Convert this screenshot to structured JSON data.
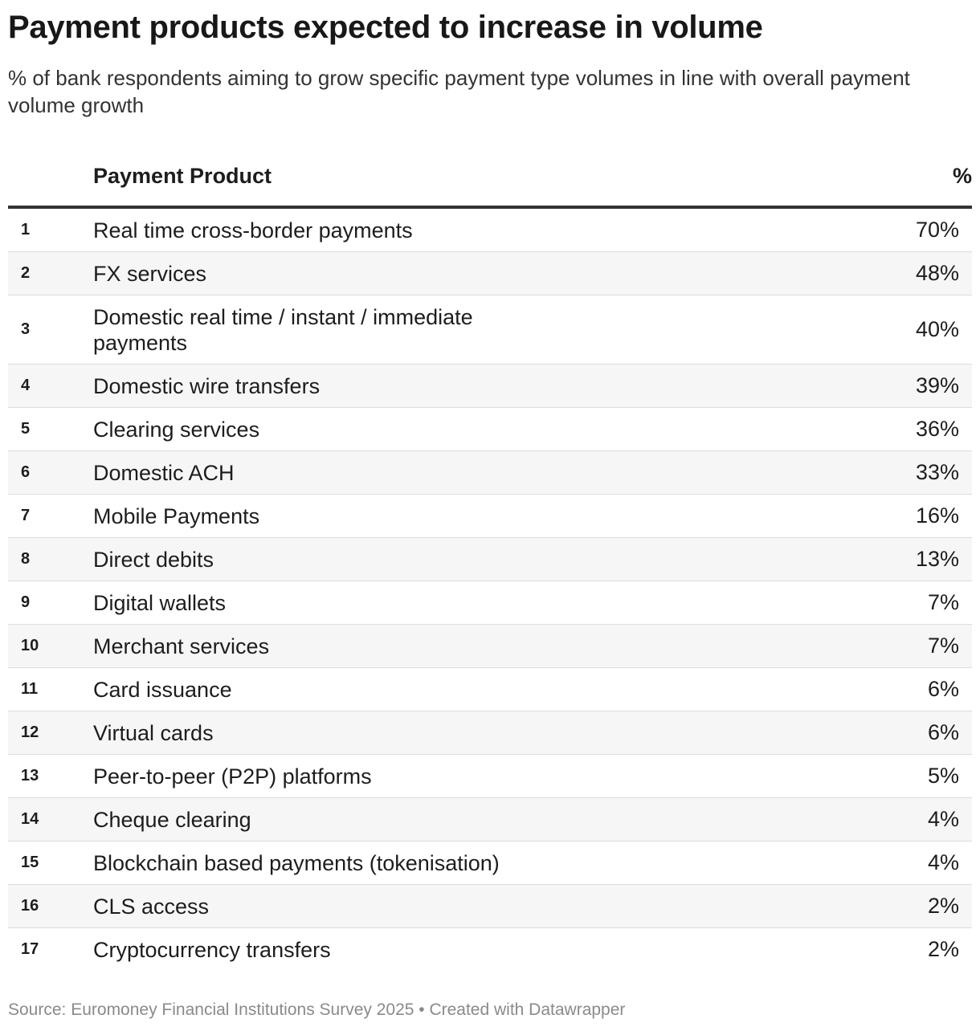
{
  "title": "Payment products expected to increase in volume",
  "subtitle": "% of bank respondents aiming to grow specific payment type volumes in line with overall payment volume growth",
  "footer": "Source: Euromoney Financial Institutions Survey 2025 • Created with Datawrapper",
  "chart_data": {
    "type": "table",
    "columns": [
      "",
      "Payment Product",
      "%"
    ],
    "rows": [
      {
        "rank": "1",
        "product": "Real time cross-border payments",
        "value": "70%"
      },
      {
        "rank": "2",
        "product": "FX services",
        "value": "48%"
      },
      {
        "rank": "3",
        "product": "Domestic real time / instant / immediate payments",
        "value": "40%"
      },
      {
        "rank": "4",
        "product": "Domestic wire transfers",
        "value": "39%"
      },
      {
        "rank": "5",
        "product": "Clearing services",
        "value": "36%"
      },
      {
        "rank": "6",
        "product": "Domestic ACH",
        "value": "33%"
      },
      {
        "rank": "7",
        "product": "Mobile Payments",
        "value": "16%"
      },
      {
        "rank": "8",
        "product": "Direct debits",
        "value": "13%"
      },
      {
        "rank": "9",
        "product": "Digital wallets",
        "value": "7%"
      },
      {
        "rank": "10",
        "product": "Merchant services",
        "value": "7%"
      },
      {
        "rank": "11",
        "product": "Card issuance",
        "value": "6%"
      },
      {
        "rank": "12",
        "product": "Virtual cards",
        "value": "6%"
      },
      {
        "rank": "13",
        "product": "Peer-to-peer (P2P) platforms",
        "value": "5%"
      },
      {
        "rank": "14",
        "product": "Cheque clearing",
        "value": "4%"
      },
      {
        "rank": "15",
        "product": "Blockchain based payments (tokenisation)",
        "value": "4%"
      },
      {
        "rank": "16",
        "product": "CLS access",
        "value": "2%"
      },
      {
        "rank": "17",
        "product": "Cryptocurrency transfers",
        "value": "2%"
      }
    ]
  }
}
